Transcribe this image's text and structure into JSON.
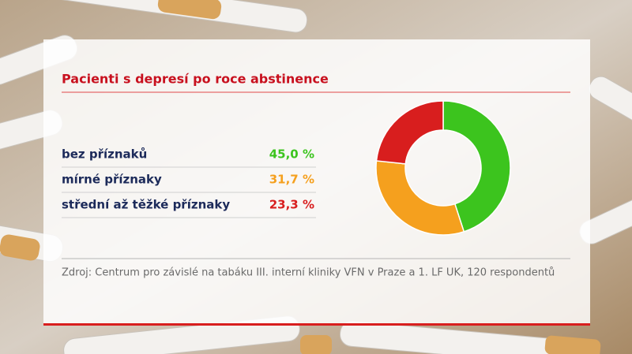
{
  "chart_data": {
    "type": "pie",
    "donut": true,
    "title": "Pacienti s depresí po roce abstinence",
    "categories": [
      "bez příznaků",
      "mírné příznaky",
      "střední až těžké příznaky"
    ],
    "values": [
      45.0,
      31.7,
      23.3
    ],
    "value_labels": [
      "45,0 %",
      "31,7 %",
      "23,3 %"
    ],
    "colors": [
      "#3cc41e",
      "#f5a01e",
      "#d81e1e"
    ],
    "source": "Zdroj: Centrum pro závislé na tabáku III. interní kliniky VFN v Praze a 1. LF UK, 120 respondentů"
  }
}
